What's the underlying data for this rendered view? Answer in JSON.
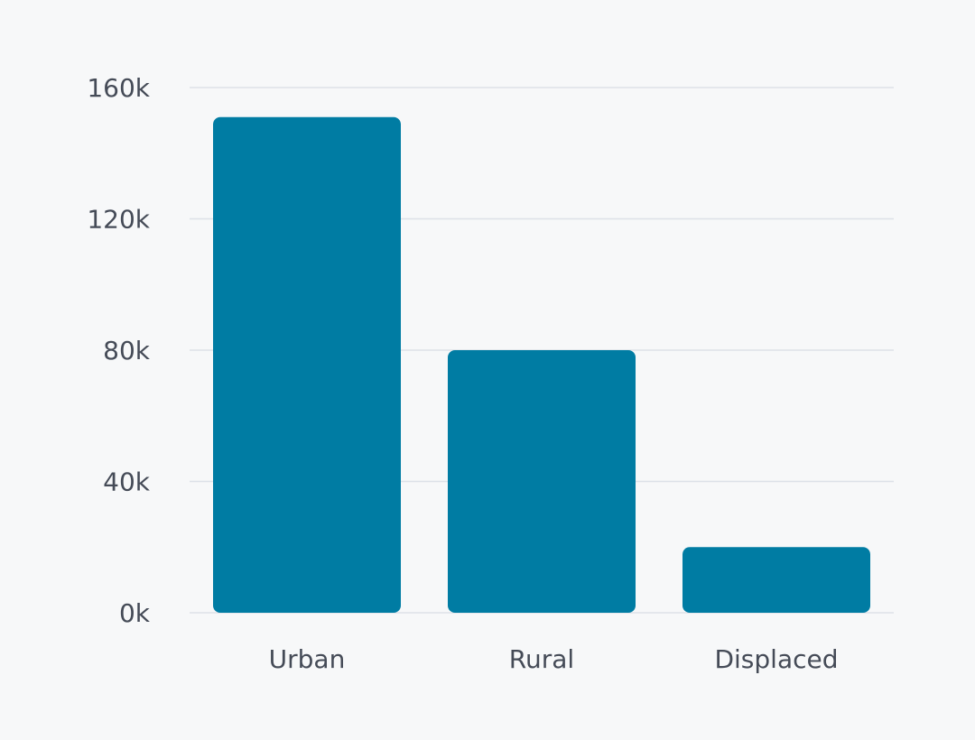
{
  "chart_data": {
    "type": "bar",
    "title": "",
    "xlabel": "",
    "ylabel": "",
    "categories": [
      "Urban",
      "Rural",
      "Displaced"
    ],
    "values": [
      151000,
      80000,
      20000
    ],
    "ylim": [
      0,
      160000
    ],
    "yticks": [
      0,
      40000,
      80000,
      120000,
      160000
    ],
    "ytick_labels": [
      "0k",
      "40k",
      "80k",
      "120k",
      "160k"
    ],
    "grid": true,
    "legend": "none",
    "colors": {
      "bar": "#007ca3",
      "grid": "#dde1e8",
      "text": "#454b57",
      "background": "#f7f8f9"
    }
  }
}
